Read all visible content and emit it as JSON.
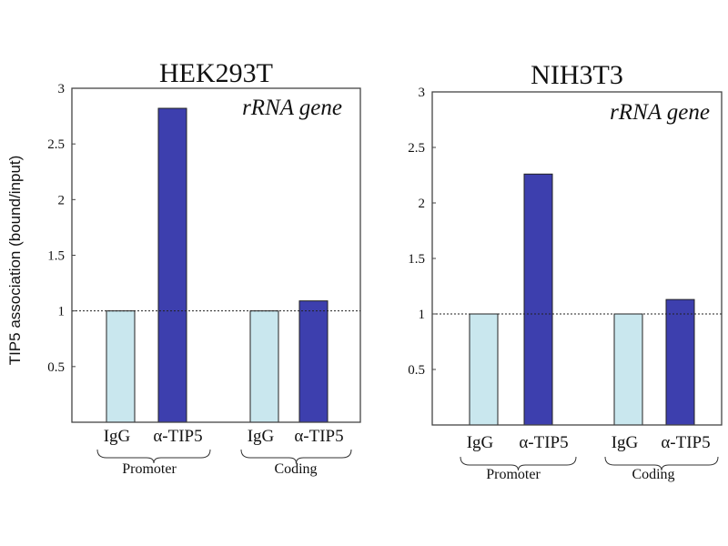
{
  "ylabel": "TIP5 association (bound/input)",
  "colors": {
    "igg": "#c9e7ee",
    "tip5": "#3d3fae",
    "edge": "#222222"
  },
  "chart_data": [
    {
      "type": "bar",
      "title": "HEK293T",
      "annotation": "rRNA gene",
      "categories": [
        "IgG",
        "α-TIP5",
        "IgG",
        "α-TIP5"
      ],
      "groups": [
        "Promoter",
        "Coding"
      ],
      "values": [
        1.0,
        2.82,
        1.0,
        1.09
      ],
      "ylim": [
        0,
        3
      ],
      "yticks": [
        "0.5",
        "1",
        "1.5",
        "2",
        "2.5",
        "3"
      ],
      "reference_line": 1
    },
    {
      "type": "bar",
      "title": "NIH3T3",
      "annotation": "rRNA gene",
      "categories": [
        "IgG",
        "α-TIP5",
        "IgG",
        "α-TIP5"
      ],
      "groups": [
        "Promoter",
        "Coding"
      ],
      "values": [
        1.0,
        2.26,
        1.0,
        1.13
      ],
      "ylim": [
        0,
        3
      ],
      "yticks": [
        "0.5",
        "1",
        "1.5",
        "2",
        "2.5",
        "3"
      ],
      "reference_line": 1
    }
  ]
}
